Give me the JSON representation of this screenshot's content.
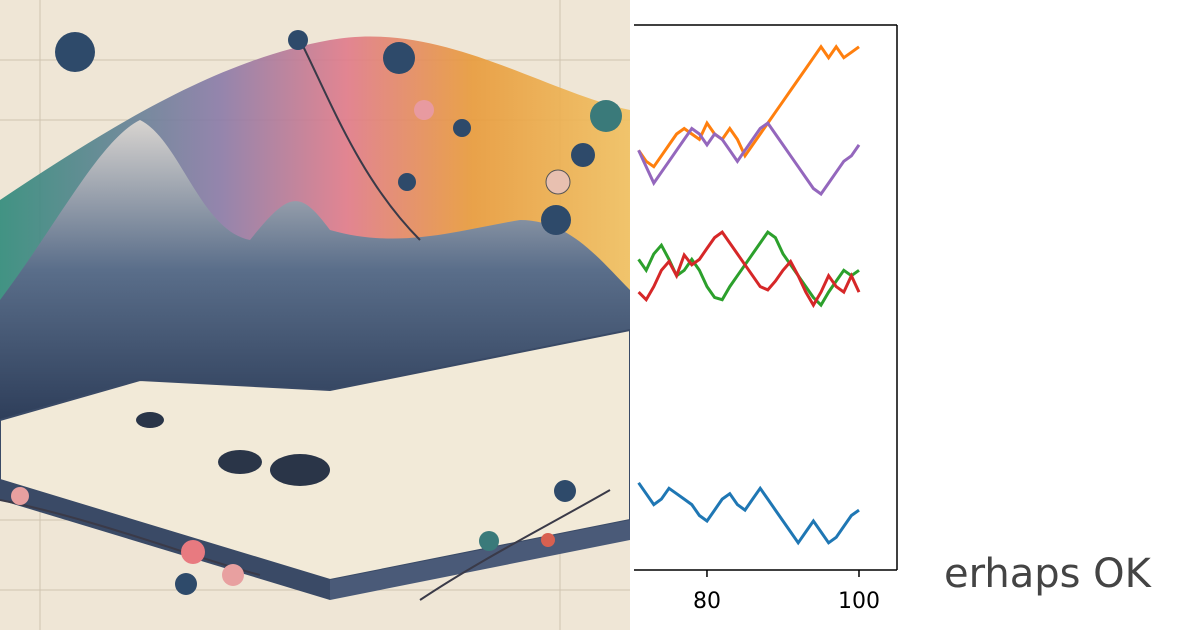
{
  "chart_data": {
    "type": "line",
    "x": [
      71,
      72,
      73,
      74,
      75,
      76,
      77,
      78,
      79,
      80,
      81,
      82,
      83,
      84,
      85,
      86,
      87,
      88,
      89,
      90,
      91,
      92,
      93,
      94,
      95,
      96,
      97,
      98,
      99,
      100
    ],
    "series": [
      {
        "color": "#1f77b4",
        "values": [
          8,
          7,
          6,
          6.5,
          7.5,
          7,
          6.5,
          6,
          5,
          4.5,
          5.5,
          6.5,
          7,
          6,
          5.5,
          6.5,
          7.5,
          6.5,
          5.5,
          4.5,
          3.5,
          2.5,
          3.5,
          4.5,
          3.5,
          2.5,
          3,
          4,
          5,
          5.5
        ]
      },
      {
        "color": "#ff7f0e",
        "values": [
          38.5,
          37.5,
          37,
          38,
          39,
          40,
          40.5,
          40,
          39.5,
          41,
          40,
          39.5,
          40.5,
          39.5,
          38,
          39,
          40,
          41,
          42,
          43,
          44,
          45,
          46,
          47,
          48,
          47,
          48,
          47,
          47.5,
          48
        ]
      },
      {
        "color": "#2ca02c",
        "values": [
          28.5,
          27.5,
          29,
          29.8,
          28.5,
          27,
          27.5,
          28.5,
          27.5,
          26,
          25,
          24.8,
          26,
          27,
          28,
          29,
          30,
          31,
          30.5,
          29,
          28,
          27,
          26,
          25,
          24.3,
          25.5,
          26.5,
          27.5,
          27,
          27.5
        ]
      },
      {
        "color": "#d62728",
        "values": [
          25.5,
          24.8,
          26,
          27.5,
          28.3,
          27,
          28.9,
          28,
          28.5,
          29.5,
          30.5,
          31,
          30,
          29,
          28,
          27,
          26,
          25.7,
          26.5,
          27.5,
          28.3,
          27,
          25.5,
          24.3,
          25.5,
          27,
          26,
          25.5,
          27,
          25.5
        ]
      },
      {
        "color": "#9467bd",
        "values": [
          38.5,
          37,
          35.5,
          36.5,
          37.5,
          38.5,
          39.5,
          40.5,
          40,
          39,
          40,
          39.5,
          38.5,
          37.5,
          38.5,
          39.5,
          40.5,
          41,
          40,
          39,
          38,
          37,
          36,
          35,
          34.5,
          35.5,
          36.5,
          37.5,
          38,
          39
        ]
      }
    ],
    "xlim": [
      70.4,
      105
    ],
    "xticks": [
      80,
      100
    ],
    "ylim": [
      0,
      50
    ]
  },
  "caption": "erhaps OK"
}
